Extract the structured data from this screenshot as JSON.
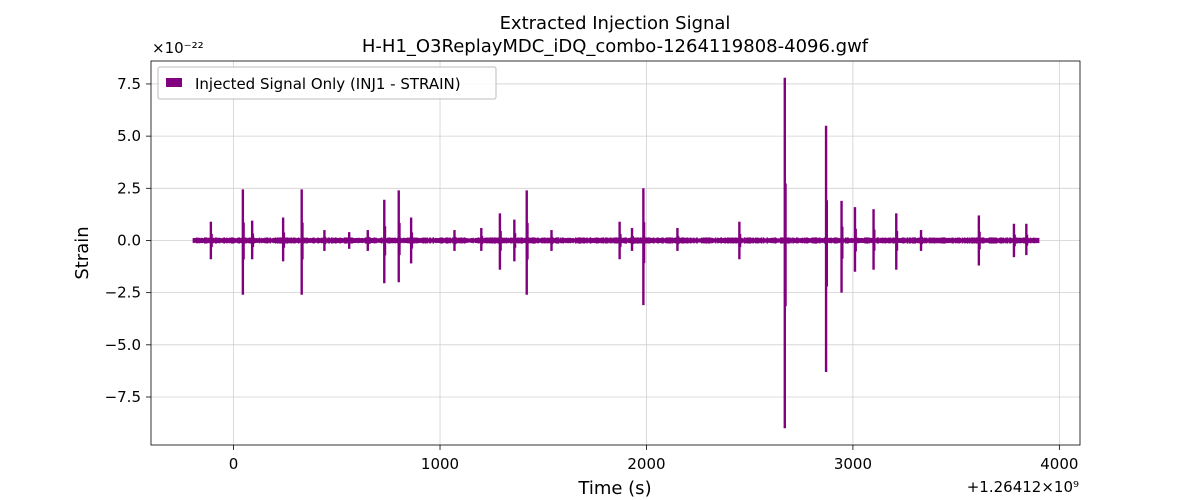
{
  "chart_data": {
    "type": "line",
    "title": "Extracted Injection Signal",
    "subtitle": "H-H1_O3ReplayMDC_iDQ_combo-1264119808-4096.gwf",
    "xlabel": "Time (s)",
    "ylabel": "Strain",
    "x_offset_label": "+1.26412×10⁹",
    "y_scale_label": "×10⁻²²",
    "xlim": [
      -400,
      4100
    ],
    "ylim": [
      -9.8,
      8.6
    ],
    "x_ticks": [
      0,
      1000,
      2000,
      3000,
      4000
    ],
    "x_tick_labels": [
      "0",
      "1000",
      "2000",
      "3000",
      "4000"
    ],
    "y_ticks": [
      -7.5,
      -5.0,
      -2.5,
      0.0,
      2.5,
      5.0,
      7.5
    ],
    "y_tick_labels": [
      "−7.5",
      "−5.0",
      "−2.5",
      "0.0",
      "2.5",
      "5.0",
      "7.5"
    ],
    "grid": true,
    "legend_position": "top-left",
    "series": [
      {
        "name": "Injected Signal Only (INJ1 - STRAIN)",
        "color": "#800080",
        "x_range": [
          -195,
          3900
        ],
        "baseline_amplitude": 0.15,
        "spikes": [
          {
            "x": -110,
            "max": 0.9,
            "min": -0.9
          },
          {
            "x": 45,
            "max": 2.45,
            "min": -2.6
          },
          {
            "x": 90,
            "max": 0.95,
            "min": -0.9
          },
          {
            "x": 240,
            "max": 1.1,
            "min": -1.0
          },
          {
            "x": 330,
            "max": 2.45,
            "min": -2.6
          },
          {
            "x": 440,
            "max": 0.5,
            "min": -0.5
          },
          {
            "x": 560,
            "max": 0.4,
            "min": -0.4
          },
          {
            "x": 650,
            "max": 0.5,
            "min": -0.5
          },
          {
            "x": 730,
            "max": 1.95,
            "min": -2.05
          },
          {
            "x": 800,
            "max": 2.4,
            "min": -2.0
          },
          {
            "x": 860,
            "max": 1.1,
            "min": -1.1
          },
          {
            "x": 1070,
            "max": 0.5,
            "min": -0.5
          },
          {
            "x": 1200,
            "max": 0.6,
            "min": -0.5
          },
          {
            "x": 1290,
            "max": 1.3,
            "min": -1.4
          },
          {
            "x": 1360,
            "max": 1.0,
            "min": -1.0
          },
          {
            "x": 1420,
            "max": 2.4,
            "min": -2.6
          },
          {
            "x": 1540,
            "max": 0.5,
            "min": -0.5
          },
          {
            "x": 1870,
            "max": 0.9,
            "min": -0.9
          },
          {
            "x": 1930,
            "max": 0.6,
            "min": -0.5
          },
          {
            "x": 1985,
            "max": 2.5,
            "min": -3.1
          },
          {
            "x": 2150,
            "max": 0.6,
            "min": -0.5
          },
          {
            "x": 2450,
            "max": 0.9,
            "min": -0.9
          },
          {
            "x": 2670,
            "max": 7.8,
            "min": -9.0
          },
          {
            "x": 2870,
            "max": 5.5,
            "min": -6.3
          },
          {
            "x": 2945,
            "max": 1.9,
            "min": -2.5
          },
          {
            "x": 3010,
            "max": 1.6,
            "min": -1.5
          },
          {
            "x": 3100,
            "max": 1.5,
            "min": -1.4
          },
          {
            "x": 3210,
            "max": 1.3,
            "min": -1.4
          },
          {
            "x": 3330,
            "max": 0.5,
            "min": -0.5
          },
          {
            "x": 3610,
            "max": 1.2,
            "min": -1.2
          },
          {
            "x": 3780,
            "max": 0.8,
            "min": -0.8
          },
          {
            "x": 3840,
            "max": 0.8,
            "min": -0.7
          }
        ]
      }
    ]
  }
}
